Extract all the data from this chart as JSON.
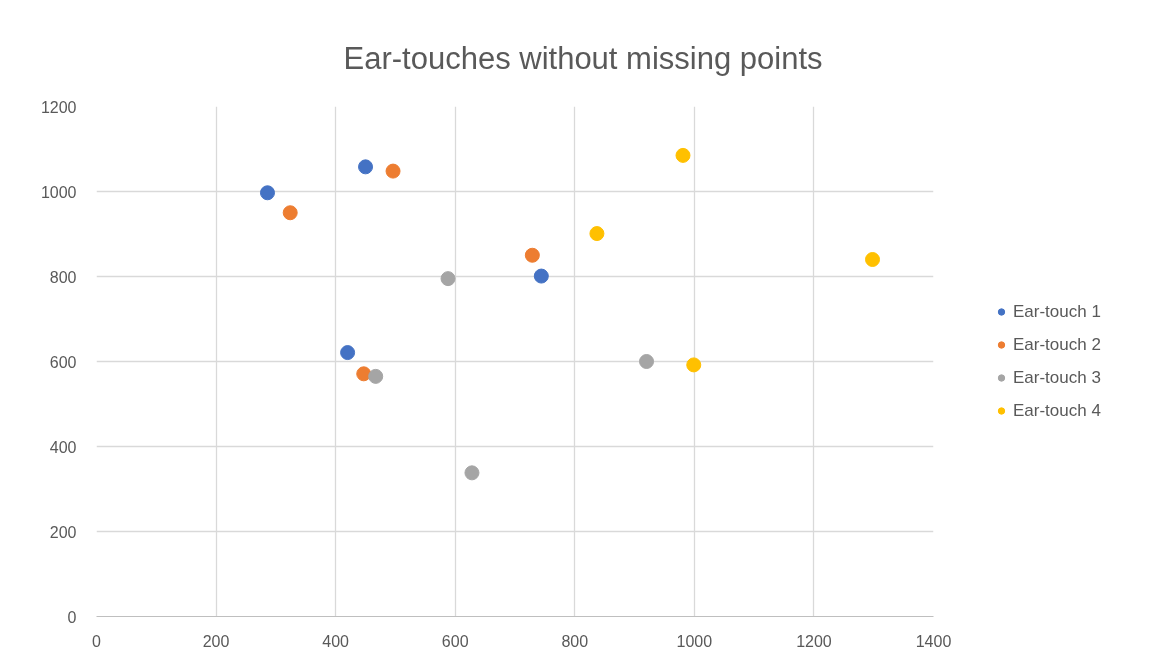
{
  "chart_data": {
    "type": "scatter",
    "title": "Ear-touches without missing points",
    "xlim": [
      0,
      1400
    ],
    "ylim": [
      0,
      1200
    ],
    "xticks": [
      0,
      200,
      400,
      600,
      800,
      1000,
      1200,
      1400
    ],
    "yticks": [
      0,
      200,
      400,
      600,
      800,
      1000,
      1200
    ],
    "grid": true,
    "legend": "right",
    "marker": "circle",
    "series": [
      {
        "name": "Ear-touch 1",
        "color": "#4472c4",
        "x": [
          286,
          450,
          744,
          420
        ],
        "values": [
          997,
          1058,
          801,
          621
        ]
      },
      {
        "name": "Ear-touch 2",
        "color": "#ed7d31",
        "x": [
          324,
          496,
          729,
          447
        ],
        "values": [
          950,
          1048,
          850,
          571
        ]
      },
      {
        "name": "Ear-touch 3",
        "color": "#a5a5a5",
        "x": [
          588,
          467,
          628,
          920
        ],
        "values": [
          795,
          565,
          338,
          600
        ]
      },
      {
        "name": "Ear-touch 4",
        "color": "#ffc000",
        "x": [
          981,
          837,
          1298,
          999
        ],
        "values": [
          1085,
          901,
          840,
          592
        ]
      }
    ]
  }
}
